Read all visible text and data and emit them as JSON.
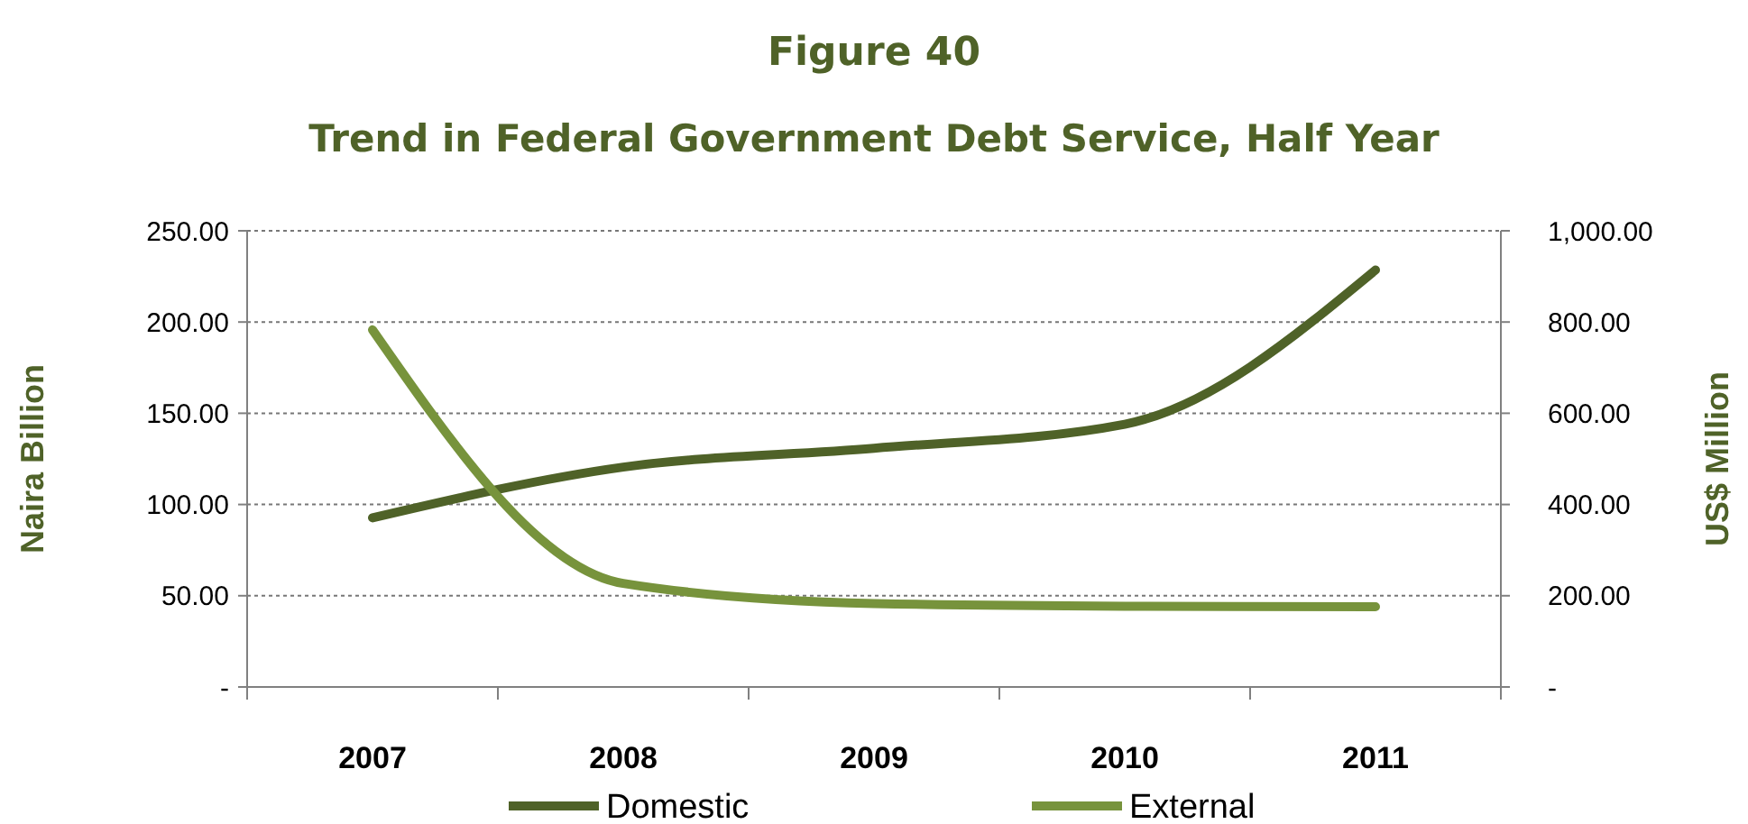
{
  "chart_data": {
    "type": "line",
    "title": "Figure 40",
    "subtitle": "Trend in Federal Government Debt Service, Half Year",
    "ylabel": "Naira Billion",
    "y2label": "US$ Million",
    "categories": [
      "2007",
      "2008",
      "2009",
      "2010",
      "2011"
    ],
    "series": [
      {
        "name": "Domestic",
        "color": "#4f6228",
        "values": [
          92.7,
          120.5,
          130.8,
          144,
          228.5
        ]
      },
      {
        "name": "External",
        "color": "#77933c",
        "axis": "y2",
        "values": [
          783,
          227,
          183,
          177,
          176
        ]
      }
    ],
    "ylim": [
      0,
      250
    ],
    "yticks": [
      {
        "value": 0,
        "label": "-"
      },
      {
        "value": 50,
        "label": "50.00"
      },
      {
        "value": 100,
        "label": "100.00"
      },
      {
        "value": 150,
        "label": "150.00"
      },
      {
        "value": 200,
        "label": "200.00"
      },
      {
        "value": 250,
        "label": "250.00"
      }
    ],
    "y2lim": [
      0,
      1000
    ],
    "y2ticks": [
      {
        "value": 0,
        "label": "-"
      },
      {
        "value": 200,
        "label": "200.00"
      },
      {
        "value": 400,
        "label": "400.00"
      },
      {
        "value": 600,
        "label": "600.00"
      },
      {
        "value": 800,
        "label": "800.00"
      },
      {
        "value": 1000,
        "label": "1,000.00"
      }
    ],
    "grid": "y",
    "legend": "bottom",
    "marker": "none",
    "line_style": "solid"
  }
}
